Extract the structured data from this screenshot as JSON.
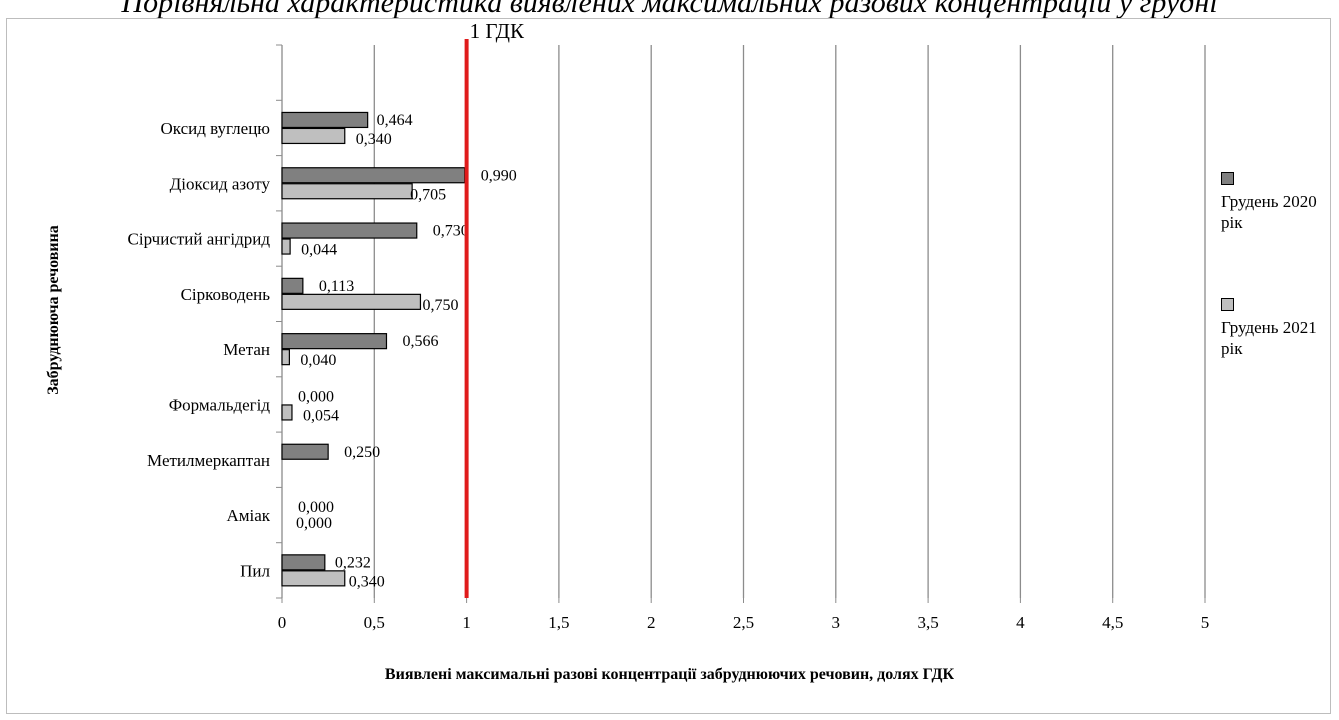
{
  "page": {
    "top_title": "Порівняльна характеристика виявлених максимальних разових концентрацій у грудні"
  },
  "chart_data": {
    "type": "bar",
    "orientation": "horizontal",
    "categories": [
      "Оксид вуглецю",
      "Діоксид азоту",
      "Сірчистий ангідрид",
      "Сірководень",
      "Метан",
      "Формальдегід",
      "Метилмеркаптан",
      "Аміак",
      "Пил"
    ],
    "series": [
      {
        "name": "Грудень 2020 рік",
        "color": "#808080",
        "values": [
          0.464,
          0.99,
          0.73,
          0.113,
          0.566,
          0.0,
          0.25,
          0.0,
          0.232
        ],
        "labels": [
          "0,464",
          "0,990",
          "0,730",
          "0,113",
          "0,566",
          "0,000",
          "0,250",
          "0,000",
          "0,232"
        ]
      },
      {
        "name": "Грудень 2021 рік",
        "color": "#bfbfbf",
        "values": [
          0.34,
          0.705,
          0.044,
          0.75,
          0.04,
          0.054,
          null,
          0.0,
          0.34
        ],
        "labels": [
          "0,340",
          "0,705",
          "0,044",
          "0,750",
          "0,040",
          "0,054",
          null,
          "0,000",
          "0,340"
        ]
      }
    ],
    "xlim": [
      0,
      5
    ],
    "x_ticks": [
      "0",
      "0,5",
      "1",
      "1,5",
      "2",
      "2,5",
      "3",
      "3,5",
      "4",
      "4,5",
      "5"
    ],
    "xlabel": "Виявлені максимальні  разові концентрації забруднюючих речовин, долях ГДК",
    "ylabel": "Забруднююча речовина",
    "reference_line": {
      "value": 1,
      "label": "1 ГДК",
      "color": "#e01b1b"
    },
    "grid": "vertical",
    "legend_position": "right"
  }
}
